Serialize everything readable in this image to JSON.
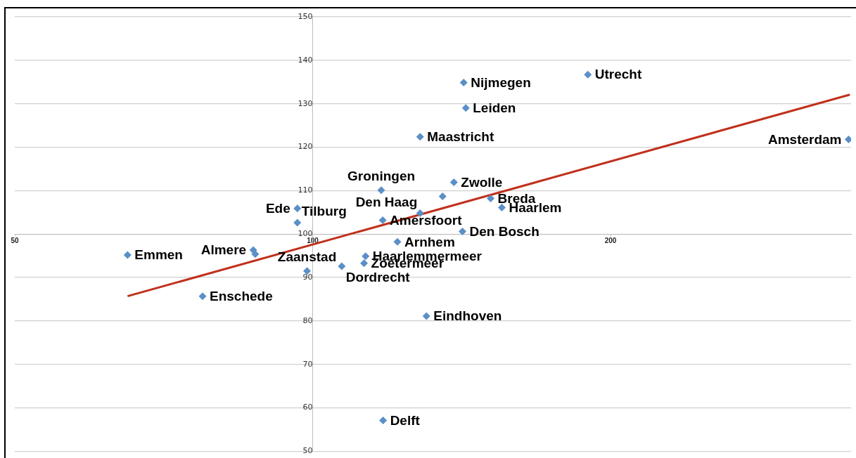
{
  "chart_data": {
    "type": "scatter",
    "log": "x",
    "grid": "y",
    "xlim": [
      50,
      350
    ],
    "xticks": [
      50,
      100,
      200
    ],
    "ylim": [
      50,
      150
    ],
    "yticks": [
      50,
      60,
      70,
      80,
      90,
      100,
      110,
      120,
      130,
      140,
      150
    ],
    "series": [
      {
        "type": "scatter",
        "marker": "diamond",
        "color": "#5b8fc7",
        "x": [
          65.0,
          77.4,
          87.1,
          87.5,
          98.7,
          107.0,
          113.1,
          112.7,
          121.8,
          117.7,
          96.5,
          96.5,
          117.3,
          128.4,
          135.3,
          128.4,
          138.9,
          151.3,
          155.3,
          141.7,
          142.1,
          142.8,
          189.7,
          348,
          130.3,
          117.8
        ],
        "values": [
          95.2,
          85.7,
          96.3,
          95.4,
          91.5,
          92.6,
          94.9,
          93.3,
          98.2,
          103.2,
          102.6,
          105.9,
          110.1,
          104.8,
          108.7,
          122.4,
          111.9,
          108.2,
          106.1,
          100.6,
          134.9,
          129.0,
          136.7,
          121.8,
          81.1,
          57.1
        ]
      },
      {
        "type": "line",
        "color": "#c0301c",
        "x": [
          65.0,
          349
        ],
        "values": [
          85.7,
          132.1
        ]
      }
    ],
    "annotations": [
      {
        "text": "Emmen",
        "x": 65.0,
        "y": 95.2
      },
      {
        "text": "Enschede",
        "x": 77.4,
        "y": 85.7
      },
      {
        "text": "Almere",
        "x": 87.1,
        "y": 96.3
      },
      {
        "text": "Zaanstad",
        "x": 98.7,
        "y": 91.5
      },
      {
        "text": "Dordrecht",
        "x": 107.0,
        "y": 92.6
      },
      {
        "text": "Haarlemmermeer",
        "x": 113.1,
        "y": 94.9
      },
      {
        "text": "Zoetermeer",
        "x": 112.7,
        "y": 93.3
      },
      {
        "text": "Arnhem",
        "x": 121.8,
        "y": 98.2
      },
      {
        "text": "Amersfoort",
        "x": 117.7,
        "y": 103.2
      },
      {
        "text": "Tilburg",
        "x": 96.5,
        "y": 102.6
      },
      {
        "text": "Ede",
        "x": 96.5,
        "y": 105.9
      },
      {
        "text": "Groningen",
        "x": 117.3,
        "y": 110.1
      },
      {
        "text": "Den Haag",
        "x": 128.4,
        "y": 104.8
      },
      {
        "text": "Maastricht",
        "x": 128.4,
        "y": 122.4
      },
      {
        "text": "Zwolle",
        "x": 138.9,
        "y": 111.9
      },
      {
        "text": "Breda",
        "x": 151.3,
        "y": 108.2
      },
      {
        "text": "Haarlem",
        "x": 155.3,
        "y": 106.1
      },
      {
        "text": "Den Bosch",
        "x": 141.7,
        "y": 100.6
      },
      {
        "text": "Nijmegen",
        "x": 142.1,
        "y": 134.9
      },
      {
        "text": "Leiden",
        "x": 142.8,
        "y": 129.0
      },
      {
        "text": "Utrecht",
        "x": 189.7,
        "y": 136.7
      },
      {
        "text": "Amsterdam",
        "x": 348,
        "y": 121.8
      },
      {
        "text": "Eindhoven",
        "x": 130.3,
        "y": 81.1
      },
      {
        "text": "Delft",
        "x": 117.8,
        "y": 57.1
      }
    ]
  }
}
